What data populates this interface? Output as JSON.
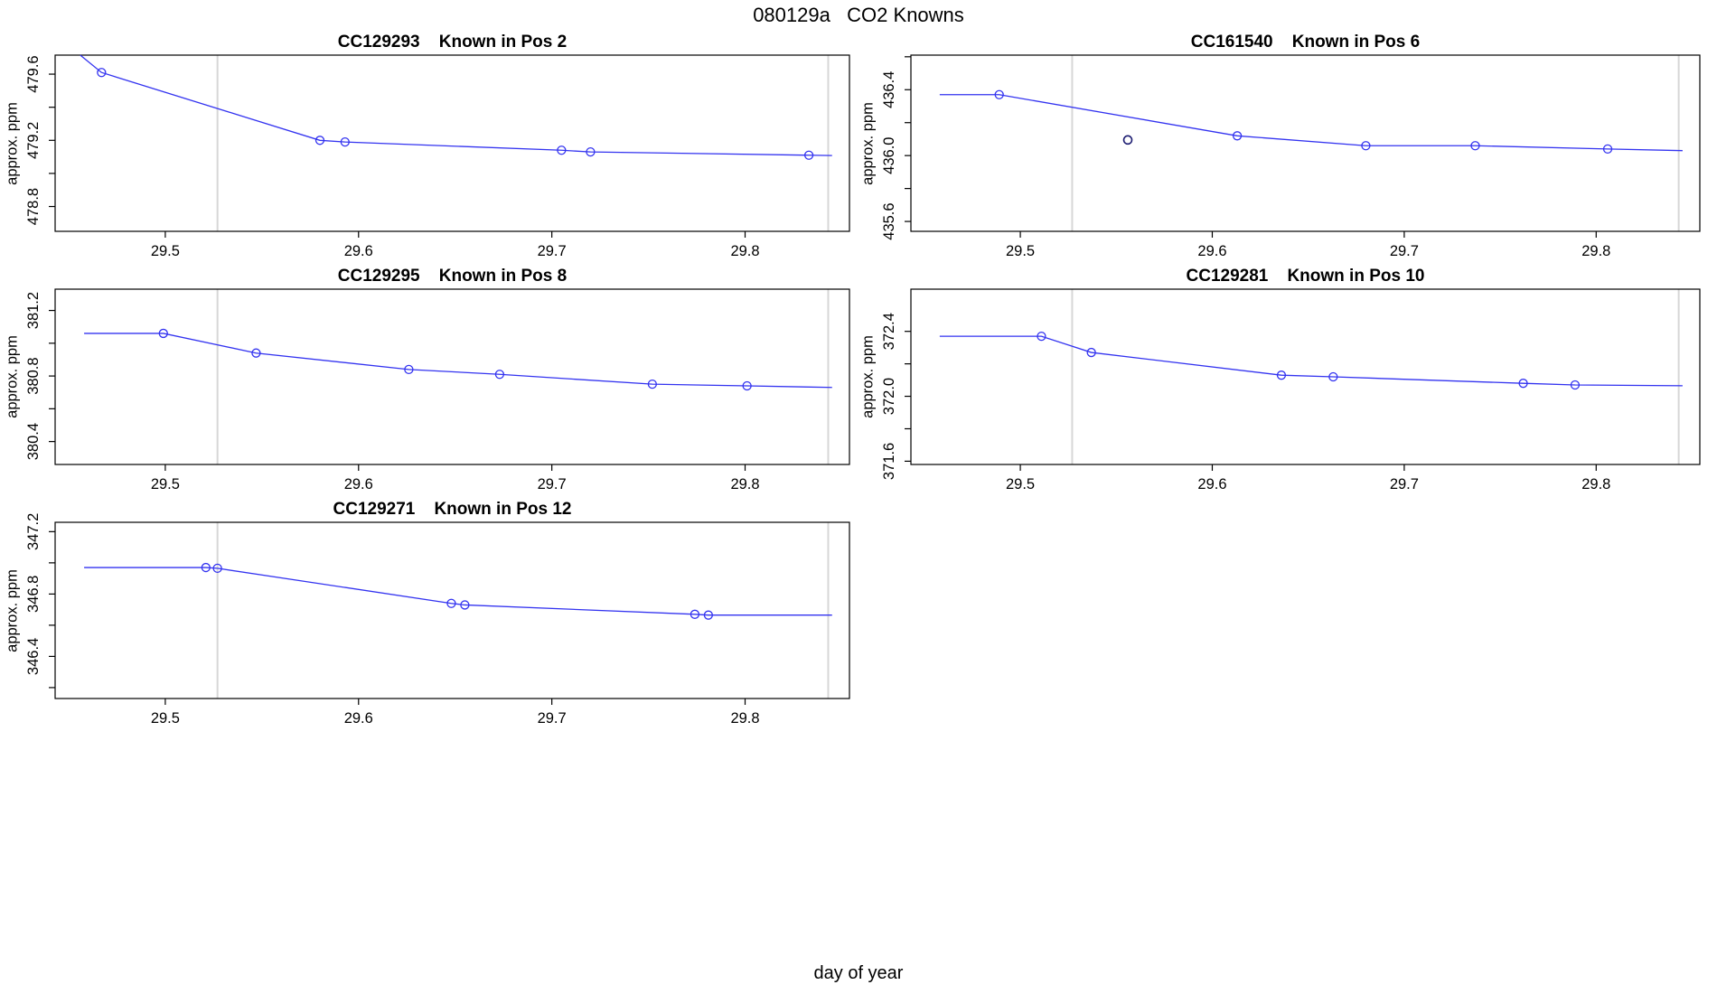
{
  "page": {
    "main_title": "080129a   CO2 Knowns",
    "xlabel": "day of year",
    "colors": {
      "line": "#3333f0",
      "marker": "#3333f0",
      "outlier": "#1a1a70",
      "gridline": "#d7d7d7",
      "axis": "#000000"
    }
  },
  "chart_data": [
    {
      "type": "line",
      "title": "CC129293    Known in Pos 2",
      "ylabel": "approx. ppm",
      "xlim": [
        29.443,
        29.854
      ],
      "xticks": [
        29.5,
        29.6,
        29.7,
        29.8
      ],
      "ylim": [
        478.65,
        479.715
      ],
      "yticks": [
        478.8,
        479.0,
        479.2,
        479.4,
        479.6
      ],
      "yticks_labeled": [
        478.8,
        479.2,
        479.6
      ],
      "gridlines_x": [
        29.527,
        29.843
      ],
      "line": [
        [
          29.456,
          479.715
        ],
        [
          29.467,
          479.61
        ],
        [
          29.58,
          479.2
        ],
        [
          29.593,
          479.19
        ],
        [
          29.705,
          479.14
        ],
        [
          29.72,
          479.13
        ],
        [
          29.833,
          479.11
        ],
        [
          29.845,
          479.108
        ]
      ],
      "markers": [
        [
          29.467,
          479.61
        ],
        [
          29.58,
          479.2
        ],
        [
          29.593,
          479.19
        ],
        [
          29.705,
          479.14
        ],
        [
          29.72,
          479.13
        ],
        [
          29.833,
          479.11
        ]
      ],
      "outliers": []
    },
    {
      "type": "line",
      "title": "CC161540    Known in Pos 6",
      "ylabel": "approx. ppm",
      "xlim": [
        29.443,
        29.854
      ],
      "xticks": [
        29.5,
        29.6,
        29.7,
        29.8
      ],
      "ylim": [
        435.54,
        436.61
      ],
      "yticks": [
        435.6,
        435.8,
        436.0,
        436.2,
        436.4,
        436.6
      ],
      "yticks_labeled": [
        435.6,
        436.0,
        436.4
      ],
      "gridlines_x": [
        29.527,
        29.843
      ],
      "line": [
        [
          29.458,
          436.37
        ],
        [
          29.489,
          436.37
        ],
        [
          29.613,
          436.12
        ],
        [
          29.68,
          436.06
        ],
        [
          29.737,
          436.06
        ],
        [
          29.806,
          436.04
        ],
        [
          29.845,
          436.03
        ]
      ],
      "markers": [
        [
          29.489,
          436.37
        ],
        [
          29.613,
          436.12
        ],
        [
          29.68,
          436.06
        ],
        [
          29.737,
          436.06
        ],
        [
          29.806,
          436.04
        ]
      ],
      "outliers": [
        [
          29.556,
          436.095
        ]
      ]
    },
    {
      "type": "line",
      "title": "CC129295    Known in Pos 8",
      "ylabel": "approx. ppm",
      "xlim": [
        29.443,
        29.854
      ],
      "xticks": [
        29.5,
        29.6,
        29.7,
        29.8
      ],
      "ylim": [
        380.26,
        381.33
      ],
      "yticks": [
        380.4,
        380.6,
        380.8,
        381.0,
        381.2
      ],
      "yticks_labeled": [
        380.4,
        380.8,
        381.2
      ],
      "gridlines_x": [
        29.527,
        29.843
      ],
      "line": [
        [
          29.458,
          381.06
        ],
        [
          29.499,
          381.06
        ],
        [
          29.547,
          380.94
        ],
        [
          29.626,
          380.84
        ],
        [
          29.673,
          380.81
        ],
        [
          29.752,
          380.75
        ],
        [
          29.801,
          380.74
        ],
        [
          29.845,
          380.73
        ]
      ],
      "markers": [
        [
          29.499,
          381.06
        ],
        [
          29.547,
          380.94
        ],
        [
          29.626,
          380.84
        ],
        [
          29.673,
          380.81
        ],
        [
          29.752,
          380.75
        ],
        [
          29.801,
          380.74
        ]
      ],
      "outliers": []
    },
    {
      "type": "line",
      "title": "CC129281    Known in Pos 10",
      "ylabel": "approx. ppm",
      "xlim": [
        29.443,
        29.854
      ],
      "xticks": [
        29.5,
        29.6,
        29.7,
        29.8
      ],
      "ylim": [
        371.58,
        372.66
      ],
      "yticks": [
        371.6,
        371.8,
        372.0,
        372.2,
        372.4
      ],
      "yticks_labeled": [
        371.6,
        372.0,
        372.4
      ],
      "gridlines_x": [
        29.527,
        29.843
      ],
      "line": [
        [
          29.458,
          372.37
        ],
        [
          29.511,
          372.37
        ],
        [
          29.537,
          372.27
        ],
        [
          29.636,
          372.13
        ],
        [
          29.663,
          372.12
        ],
        [
          29.762,
          372.08
        ],
        [
          29.789,
          372.07
        ],
        [
          29.845,
          372.065
        ]
      ],
      "markers": [
        [
          29.511,
          372.37
        ],
        [
          29.537,
          372.27
        ],
        [
          29.636,
          372.13
        ],
        [
          29.663,
          372.12
        ],
        [
          29.762,
          372.08
        ],
        [
          29.789,
          372.07
        ]
      ],
      "outliers": []
    },
    {
      "type": "line",
      "title": "CC129271    Known in Pos 12",
      "ylabel": "approx. ppm",
      "xlim": [
        29.443,
        29.854
      ],
      "xticks": [
        29.5,
        29.6,
        29.7,
        29.8
      ],
      "ylim": [
        346.13,
        347.26
      ],
      "yticks": [
        346.2,
        346.4,
        346.6,
        346.8,
        347.0,
        347.2
      ],
      "yticks_labeled": [
        346.4,
        346.8,
        347.2
      ],
      "gridlines_x": [
        29.527,
        29.843
      ],
      "line": [
        [
          29.458,
          346.97
        ],
        [
          29.521,
          346.97
        ],
        [
          29.527,
          346.965
        ],
        [
          29.648,
          346.74
        ],
        [
          29.655,
          346.73
        ],
        [
          29.774,
          346.67
        ],
        [
          29.781,
          346.665
        ],
        [
          29.845,
          346.665
        ]
      ],
      "markers": [
        [
          29.521,
          346.97
        ],
        [
          29.527,
          346.965
        ],
        [
          29.648,
          346.74
        ],
        [
          29.655,
          346.73
        ],
        [
          29.774,
          346.67
        ],
        [
          29.781,
          346.665
        ]
      ],
      "outliers": []
    }
  ]
}
